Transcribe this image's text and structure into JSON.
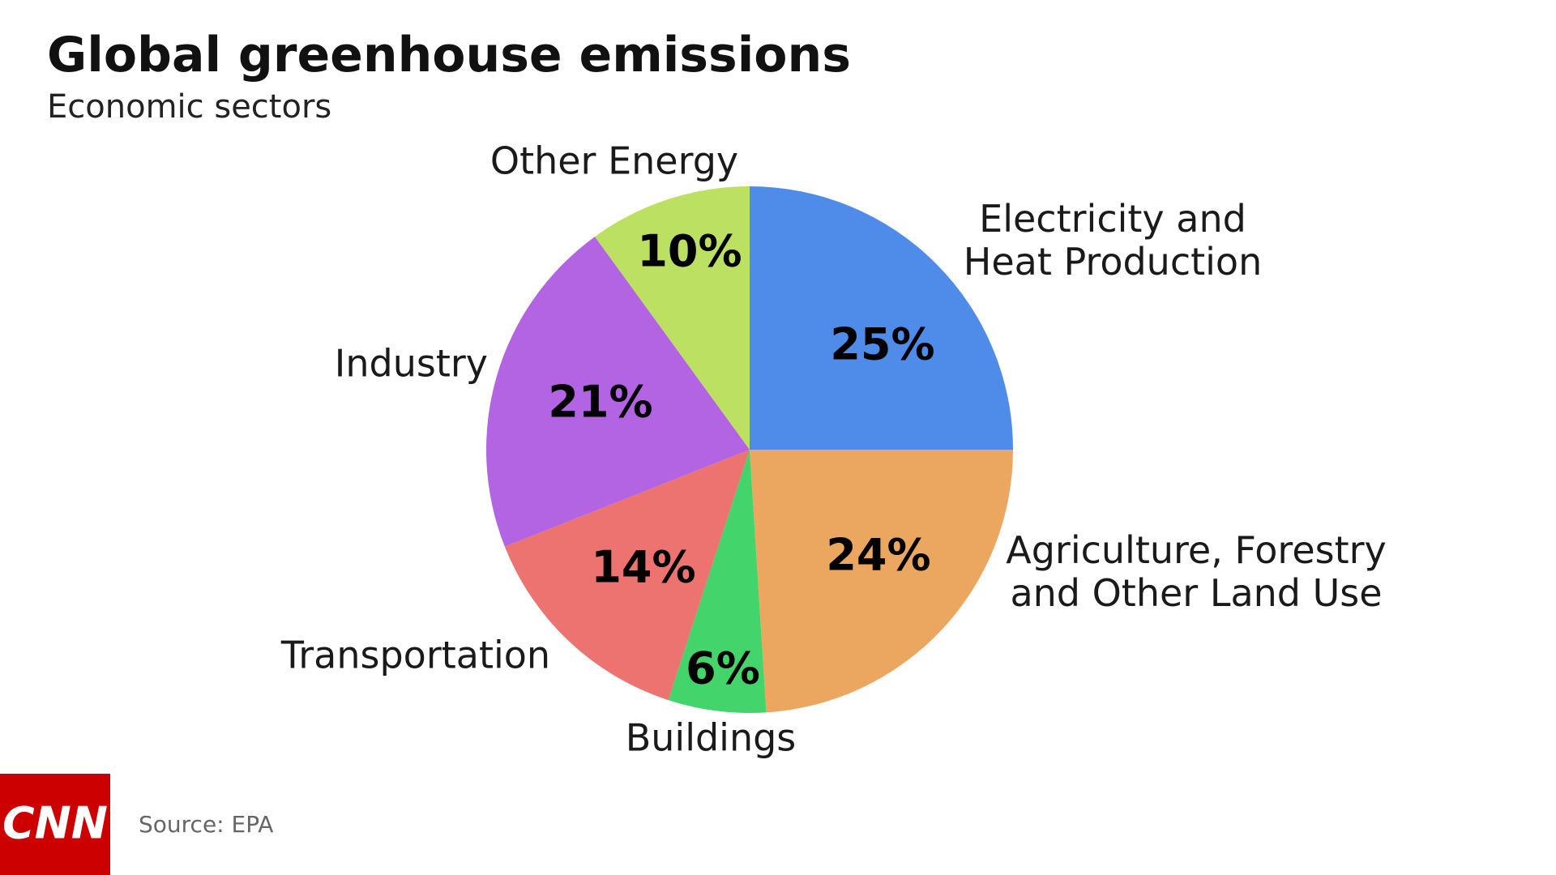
{
  "chart_data": {
    "type": "pie",
    "title": "Global greenhouse emissions",
    "subtitle": "Economic sectors",
    "categories": [
      "Electricity and\nHeat Production",
      "Agriculture, Forestry\nand Other Land Use",
      "Buildings",
      "Transportation",
      "Industry",
      "Other Energy"
    ],
    "values": [
      25,
      24,
      6,
      14,
      21,
      10
    ],
    "value_labels": [
      "25%",
      "24%",
      "6%",
      "14%",
      "21%",
      "10%"
    ],
    "colors": [
      "#4f8be9",
      "#eba760",
      "#43d46b",
      "#ec7370",
      "#b264e2",
      "#bce062"
    ],
    "source": "Source: EPA",
    "logo": "CNN"
  }
}
